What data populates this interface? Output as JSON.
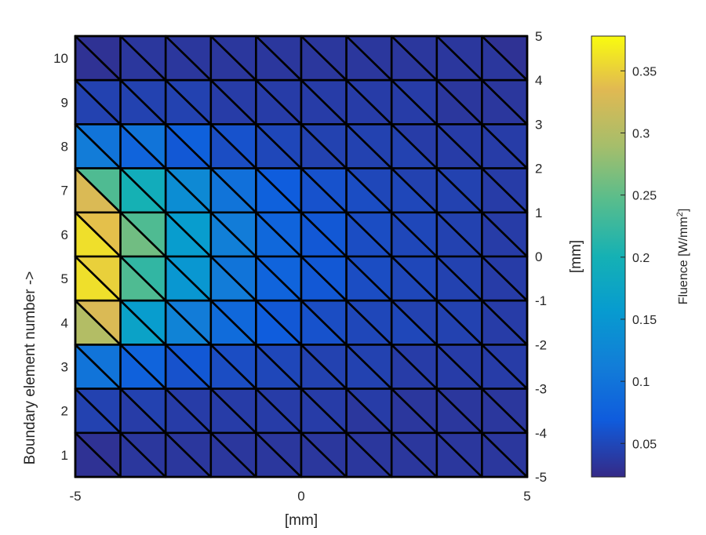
{
  "chart_data": {
    "type": "heatmap",
    "description_kind": "triangular-mesh-fluence",
    "x_axis": {
      "label": "[mm]",
      "lim": [
        -5,
        5
      ],
      "ticks": [
        "-5",
        "0",
        "5"
      ],
      "tick_values": [
        -5,
        0,
        5
      ]
    },
    "y_left_axis": {
      "label": "Boundary element number ->",
      "ticks": [
        "1",
        "2",
        "3",
        "4",
        "5",
        "6",
        "7",
        "8",
        "9",
        "10"
      ],
      "tick_values": [
        1,
        2,
        3,
        4,
        5,
        6,
        7,
        8,
        9,
        10
      ]
    },
    "y_right_axis": {
      "label": "[mm]",
      "lim": [
        -5,
        5
      ],
      "ticks": [
        "-5",
        "-4",
        "-3",
        "-2",
        "-1",
        "0",
        "1",
        "2",
        "3",
        "4",
        "5"
      ],
      "tick_values": [
        -5,
        -4,
        -3,
        -2,
        -1,
        0,
        1,
        2,
        3,
        4,
        5
      ]
    },
    "colorbar": {
      "label_main": "Fluence [W/mm",
      "label_sup": "2",
      "label_end": "]",
      "lim": [
        0.023,
        0.378
      ],
      "ticks": [
        "0.05",
        "0.1",
        "0.15",
        "0.2",
        "0.25",
        "0.3",
        "0.35"
      ],
      "tick_values": [
        0.05,
        0.1,
        0.15,
        0.2,
        0.25,
        0.3,
        0.35
      ]
    },
    "grid": {
      "cols": 10,
      "rows": 10,
      "x_range": [
        -5,
        5
      ],
      "y_range": [
        -5,
        5
      ]
    },
    "triangles_note": "each cell split by a diagonal from top-left to bottom-right into lower-left (LL) and upper-right (UR) triangles; rows listed from top (row 10) to bottom (row 1), columns left to right",
    "values_LL": [
      [
        0.03,
        0.035,
        0.035,
        0.035,
        0.035,
        0.035,
        0.035,
        0.035,
        0.035,
        0.035
      ],
      [
        0.045,
        0.045,
        0.045,
        0.04,
        0.04,
        0.04,
        0.04,
        0.04,
        0.035,
        0.035
      ],
      [
        0.11,
        0.08,
        0.065,
        0.055,
        0.05,
        0.045,
        0.045,
        0.045,
        0.04,
        0.04
      ],
      [
        0.33,
        0.2,
        0.135,
        0.1,
        0.075,
        0.06,
        0.055,
        0.05,
        0.045,
        0.04
      ],
      [
        0.36,
        0.26,
        0.16,
        0.115,
        0.085,
        0.065,
        0.055,
        0.05,
        0.045,
        0.04
      ],
      [
        0.36,
        0.24,
        0.15,
        0.11,
        0.08,
        0.065,
        0.055,
        0.05,
        0.045,
        0.04
      ],
      [
        0.3,
        0.17,
        0.12,
        0.09,
        0.07,
        0.06,
        0.05,
        0.05,
        0.045,
        0.04
      ],
      [
        0.1,
        0.075,
        0.06,
        0.055,
        0.05,
        0.045,
        0.045,
        0.04,
        0.04,
        0.04
      ],
      [
        0.045,
        0.04,
        0.04,
        0.04,
        0.04,
        0.04,
        0.035,
        0.035,
        0.035,
        0.035
      ],
      [
        0.03,
        0.035,
        0.035,
        0.035,
        0.035,
        0.035,
        0.035,
        0.035,
        0.035,
        0.035
      ]
    ],
    "values_UR": [
      [
        0.03,
        0.035,
        0.035,
        0.035,
        0.035,
        0.035,
        0.035,
        0.035,
        0.035,
        0.03
      ],
      [
        0.045,
        0.045,
        0.045,
        0.04,
        0.04,
        0.04,
        0.04,
        0.04,
        0.035,
        0.035
      ],
      [
        0.1,
        0.1,
        0.075,
        0.06,
        0.05,
        0.045,
        0.045,
        0.04,
        0.04,
        0.04
      ],
      [
        0.24,
        0.19,
        0.13,
        0.095,
        0.07,
        0.06,
        0.05,
        0.045,
        0.045,
        0.04
      ],
      [
        0.34,
        0.24,
        0.16,
        0.11,
        0.08,
        0.065,
        0.055,
        0.05,
        0.045,
        0.04
      ],
      [
        0.35,
        0.22,
        0.15,
        0.1,
        0.08,
        0.065,
        0.055,
        0.05,
        0.045,
        0.04
      ],
      [
        0.33,
        0.16,
        0.11,
        0.085,
        0.065,
        0.055,
        0.05,
        0.045,
        0.045,
        0.04
      ],
      [
        0.1,
        0.08,
        0.065,
        0.055,
        0.05,
        0.045,
        0.045,
        0.04,
        0.04,
        0.04
      ],
      [
        0.045,
        0.045,
        0.04,
        0.04,
        0.04,
        0.04,
        0.04,
        0.035,
        0.035,
        0.035
      ],
      [
        0.03,
        0.035,
        0.035,
        0.035,
        0.035,
        0.035,
        0.035,
        0.035,
        0.035,
        0.035
      ]
    ],
    "colormap": "parula"
  }
}
